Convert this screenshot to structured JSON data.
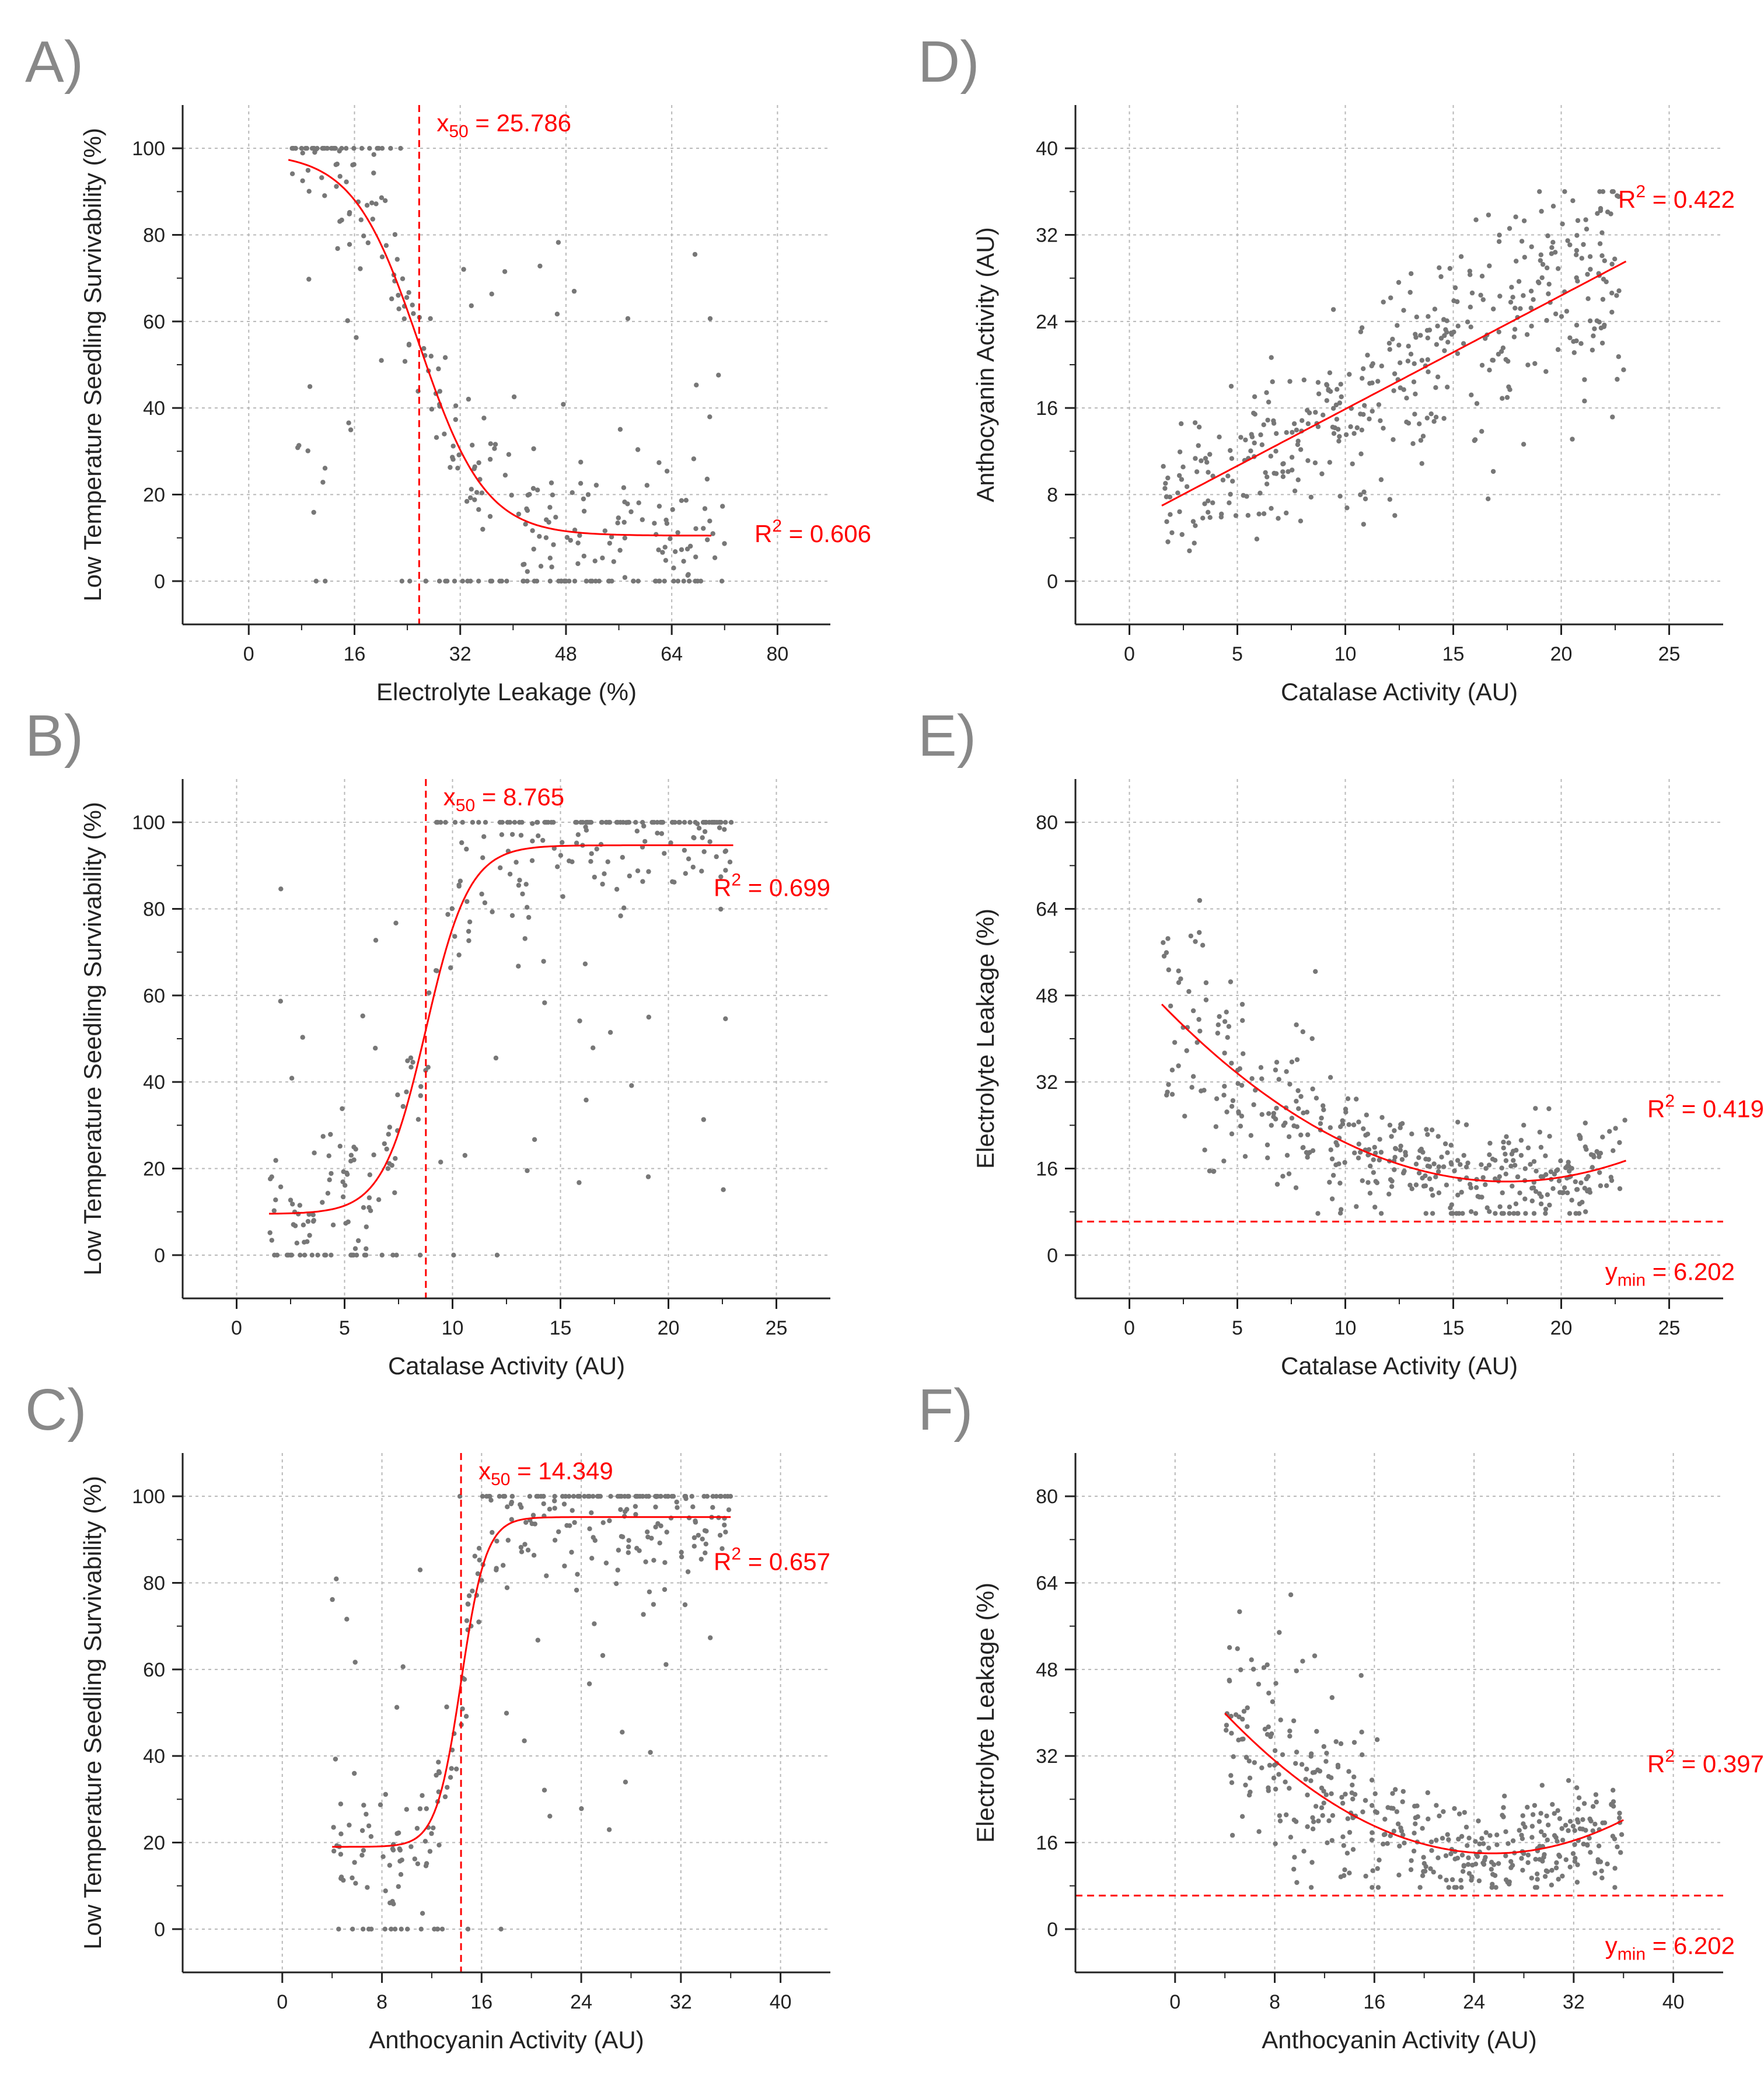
{
  "colors": {
    "fit": "#ff0000",
    "points": "#777777",
    "axis": "#222222",
    "grid": "#b8b8b8",
    "letter": "#888888"
  },
  "chart_data": [
    {
      "type": "scatter",
      "letter": "A)",
      "xlabel": "Electrolyte Leakage (%)",
      "ylabel": "Low Temperature Seedling Survivability (%)",
      "xlim": [
        -10,
        88
      ],
      "ylim": [
        -10,
        110
      ],
      "xticks": [
        0,
        16,
        32,
        48,
        64,
        80
      ],
      "yticks": [
        0,
        20,
        40,
        60,
        80,
        100
      ],
      "fit": {
        "kind": "sigmoid",
        "bottom": 10.5,
        "top": 99,
        "x50": 25.786,
        "slope": 5,
        "x_range": [
          6,
          70
        ]
      },
      "vline": 25.786,
      "x50_label": {
        "prefix": "x",
        "sub": "50",
        "value": " = 25.786"
      },
      "r2_label": {
        "prefix": "R",
        "sup": "2",
        "value": " = 0.606"
      },
      "scatter": {
        "kind": "sigmoid_cloud",
        "seed": 11,
        "n": 320,
        "x_range": [
          6,
          72
        ],
        "top_band_max": 24,
        "mid_frac": 0.18
      }
    },
    {
      "type": "scatter",
      "letter": "B)",
      "xlabel": "Catalase Activity (AU)",
      "ylabel": "Low Temperature Seedling Survivability (%)",
      "xlim": [
        -2.5,
        27.5
      ],
      "ylim": [
        -10,
        110
      ],
      "xticks": [
        0,
        5,
        10,
        15,
        20,
        25
      ],
      "yticks": [
        0,
        20,
        40,
        60,
        80,
        100
      ],
      "fit": {
        "kind": "sigmoid",
        "bottom": 9.5,
        "top": 94.7,
        "x50": 8.765,
        "slope": -1.0,
        "x_range": [
          1.5,
          23
        ]
      },
      "vline": 8.765,
      "x50_label": {
        "prefix": "x",
        "sub": "50",
        "value": " = 8.765"
      },
      "r2_label": {
        "prefix": "R",
        "sup": "2",
        "value": " = 0.699"
      },
      "scatter": {
        "kind": "sigmoid_cloud",
        "seed": 23,
        "n": 320,
        "x_range": [
          1.5,
          23
        ],
        "top_band_min": 8.5,
        "mid_frac": 0.14
      }
    },
    {
      "type": "scatter",
      "letter": "C)",
      "xlabel": "Anthocyanin Activity (AU)",
      "ylabel": "Low Temperature Seedling Survivability (%)",
      "xlim": [
        -8,
        44
      ],
      "ylim": [
        -10,
        110
      ],
      "xticks": [
        0,
        8,
        16,
        24,
        32,
        40
      ],
      "yticks": [
        0,
        20,
        40,
        60,
        80,
        100
      ],
      "fit": {
        "kind": "sigmoid",
        "bottom": 19,
        "top": 95.2,
        "x50": 14.349,
        "slope": -1.0,
        "x_range": [
          4,
          36
        ]
      },
      "vline": 14.349,
      "x50_label": {
        "prefix": "x",
        "sub": "50",
        "value": " = 14.349"
      },
      "r2_label": {
        "prefix": "R",
        "sup": "2",
        "value": " = 0.657"
      },
      "scatter": {
        "kind": "sigmoid_cloud",
        "seed": 37,
        "n": 320,
        "x_range": [
          4,
          36
        ],
        "top_band_min": 14,
        "mid_frac": 0.14
      }
    },
    {
      "type": "scatter",
      "letter": "D)",
      "xlabel": "Catalase Activity (AU)",
      "ylabel": "Anthocyanin Activity (AU)",
      "xlim": [
        -2.5,
        27.5
      ],
      "ylim": [
        -4,
        44
      ],
      "xticks": [
        0,
        5,
        10,
        15,
        20,
        25
      ],
      "yticks": [
        0,
        8,
        16,
        24,
        32,
        40
      ],
      "fit": {
        "kind": "linear",
        "slope": 1.05,
        "intercept": 5.4,
        "x_range": [
          1.5,
          23
        ]
      },
      "r2_label": {
        "prefix": "R",
        "sup": "2",
        "value": " = 0.422"
      },
      "scatter": {
        "kind": "linear_cloud",
        "seed": 53,
        "n": 420,
        "x_range": [
          1.5,
          23
        ],
        "sd": 4.2
      }
    },
    {
      "type": "scatter",
      "letter": "E)",
      "xlabel": "Catalase Activity (AU)",
      "ylabel": "Electrolyte Leakage (%)",
      "xlim": [
        -2.5,
        27.5
      ],
      "ylim": [
        -8,
        88
      ],
      "xticks": [
        0,
        5,
        10,
        15,
        20,
        25
      ],
      "yticks": [
        0,
        16,
        32,
        48,
        64,
        80
      ],
      "fit": {
        "kind": "quadratic",
        "a": 0.128,
        "xv": 17.5,
        "yv": 13.6,
        "x_range": [
          1.5,
          23
        ]
      },
      "hline": 6.202,
      "r2_label": {
        "prefix": "R",
        "sup": "2",
        "value": " = 0.419"
      },
      "ymin_label": {
        "prefix": "y",
        "sub": "min",
        "value": " = 6.202"
      },
      "scatter": {
        "kind": "quad_cloud",
        "seed": 71,
        "n": 420,
        "x_range": [
          1.5,
          23
        ],
        "sd": 6.5,
        "ymin": 6.202
      }
    },
    {
      "type": "scatter",
      "letter": "F)",
      "xlabel": "Anthocyanin Activity (AU)",
      "ylabel": "Electrolyte Leakage (%)",
      "xlim": [
        -8,
        44
      ],
      "ylim": [
        -8,
        88
      ],
      "xticks": [
        0,
        8,
        16,
        24,
        32,
        40
      ],
      "yticks": [
        0,
        16,
        32,
        48,
        64,
        80
      ],
      "fit": {
        "kind": "quadratic",
        "a": 0.056,
        "xv": 25.5,
        "yv": 14,
        "x_range": [
          4,
          36
        ]
      },
      "hline": 6.202,
      "r2_label": {
        "prefix": "R",
        "sup": "2",
        "value": " = 0.397"
      },
      "ymin_label": {
        "prefix": "y",
        "sub": "min",
        "value": " = 6.202"
      },
      "scatter": {
        "kind": "quad_cloud",
        "seed": 89,
        "n": 420,
        "x_range": [
          4,
          36
        ],
        "sd": 6.5,
        "ymin": 6.202
      }
    }
  ]
}
